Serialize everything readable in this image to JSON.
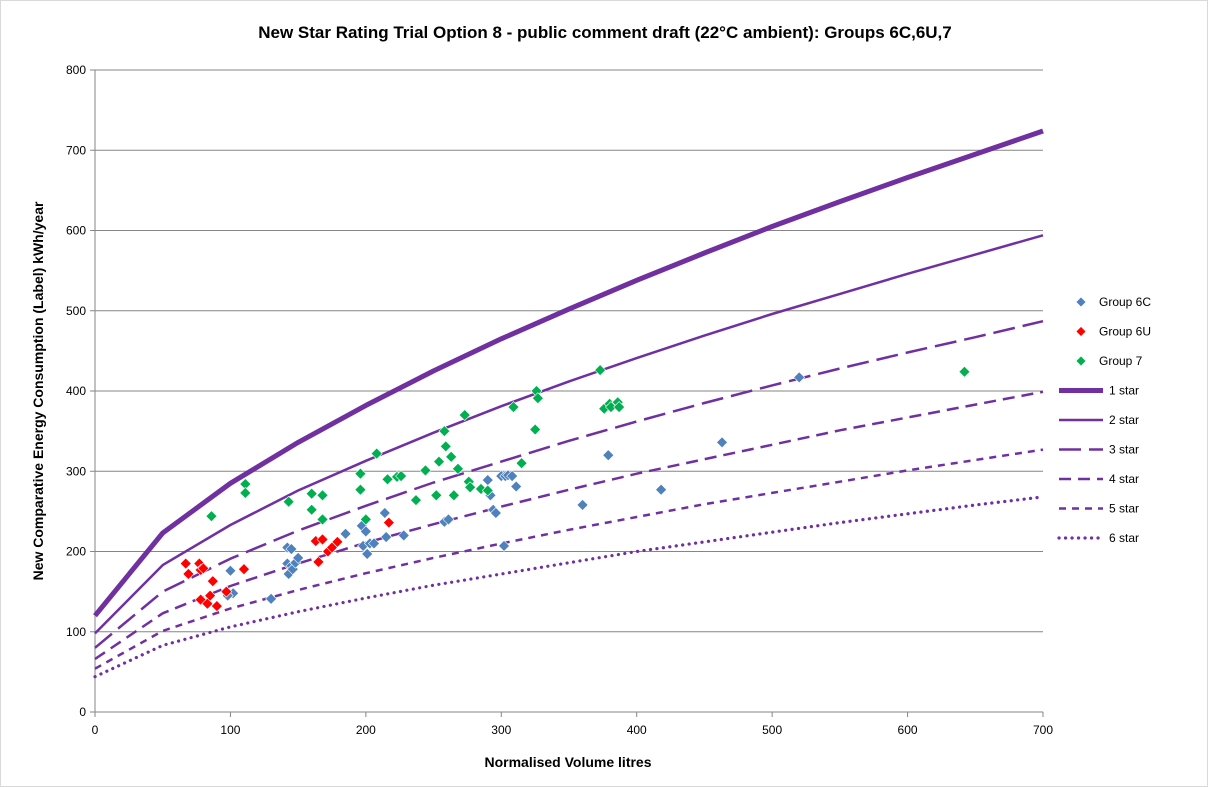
{
  "chart_data": {
    "type": "scatter",
    "title": "New Star Rating Trial Option 8 - public comment draft (22°C ambient): Groups 6C,6U,7",
    "xlabel": "Normalised Volume litres",
    "ylabel": "New Comparative Energy Consumption (Label) kWh/year",
    "xlim": [
      0,
      700
    ],
    "ylim": [
      0,
      800
    ],
    "x_ticks": [
      0,
      100,
      200,
      300,
      400,
      500,
      600,
      700
    ],
    "y_ticks": [
      0,
      100,
      200,
      300,
      400,
      500,
      600,
      700,
      800
    ],
    "grid": "horizontal",
    "legend_position": "right",
    "curve_x": [
      0,
      50,
      100,
      150,
      200,
      250,
      300,
      350,
      400,
      450,
      500,
      550,
      600,
      650,
      700
    ],
    "star_lines": [
      {
        "name": "1 star",
        "color": "#7030a0",
        "style": "thick",
        "values": [
          120,
          223,
          285,
          336,
          382,
          425,
          465,
          502,
          538,
          572,
          605,
          636,
          666,
          695,
          724
        ]
      },
      {
        "name": "2 star",
        "color": "#7030a0",
        "style": "solid",
        "values": [
          98,
          183,
          233,
          276,
          313,
          348,
          381,
          412,
          441,
          469,
          496,
          521,
          546,
          570,
          594
        ]
      },
      {
        "name": "3 star",
        "color": "#7030a0",
        "style": "longdash",
        "values": [
          80,
          150,
          191,
          226,
          257,
          286,
          312,
          338,
          362,
          385,
          407,
          428,
          448,
          467,
          487
        ]
      },
      {
        "name": "4 star",
        "color": "#7030a0",
        "style": "dash",
        "values": [
          66,
          123,
          157,
          185,
          211,
          234,
          256,
          277,
          297,
          315,
          333,
          351,
          367,
          383,
          399
        ]
      },
      {
        "name": "5 star",
        "color": "#7030a0",
        "style": "shortdash",
        "values": [
          54,
          101,
          129,
          152,
          173,
          192,
          210,
          227,
          243,
          259,
          273,
          287,
          301,
          314,
          327
        ]
      },
      {
        "name": "6 star",
        "color": "#7030a0",
        "style": "dotted",
        "values": [
          44,
          83,
          106,
          125,
          142,
          158,
          172,
          186,
          200,
          212,
          224,
          236,
          247,
          258,
          268
        ]
      }
    ],
    "series": [
      {
        "name": "Group 6C",
        "color": "#4f81bd",
        "points": [
          [
            100,
            176
          ],
          [
            102,
            148
          ],
          [
            98,
            145
          ],
          [
            130,
            141
          ],
          [
            142,
            205
          ],
          [
            145,
            203
          ],
          [
            142,
            185
          ],
          [
            145,
            182
          ],
          [
            143,
            172
          ],
          [
            146,
            178
          ],
          [
            148,
            186
          ],
          [
            150,
            192
          ],
          [
            185,
            222
          ],
          [
            197,
            232
          ],
          [
            200,
            225
          ],
          [
            198,
            207
          ],
          [
            201,
            197
          ],
          [
            203,
            210
          ],
          [
            206,
            210
          ],
          [
            214,
            248
          ],
          [
            215,
            218
          ],
          [
            228,
            220
          ],
          [
            258,
            237
          ],
          [
            261,
            240
          ],
          [
            290,
            289
          ],
          [
            292,
            270
          ],
          [
            294,
            252
          ],
          [
            296,
            248
          ],
          [
            300,
            294
          ],
          [
            303,
            294
          ],
          [
            302,
            207
          ],
          [
            305,
            295
          ],
          [
            308,
            294
          ],
          [
            311,
            281
          ],
          [
            360,
            258
          ],
          [
            379,
            320
          ],
          [
            418,
            277
          ],
          [
            463,
            336
          ],
          [
            520,
            417
          ]
        ]
      },
      {
        "name": "Group 6U",
        "color": "#ff0000",
        "points": [
          [
            67,
            185
          ],
          [
            69,
            172
          ],
          [
            77,
            185
          ],
          [
            78,
            177
          ],
          [
            80,
            179
          ],
          [
            78,
            140
          ],
          [
            83,
            135
          ],
          [
            85,
            145
          ],
          [
            87,
            163
          ],
          [
            90,
            132
          ],
          [
            97,
            150
          ],
          [
            110,
            178
          ],
          [
            163,
            213
          ],
          [
            165,
            187
          ],
          [
            168,
            215
          ],
          [
            172,
            200
          ],
          [
            175,
            205
          ],
          [
            179,
            212
          ],
          [
            217,
            236
          ]
        ]
      },
      {
        "name": "Group 7",
        "color": "#00b050",
        "points": [
          [
            86,
            244
          ],
          [
            111,
            284
          ],
          [
            111,
            273
          ],
          [
            143,
            262
          ],
          [
            160,
            272
          ],
          [
            160,
            252
          ],
          [
            168,
            270
          ],
          [
            168,
            240
          ],
          [
            196,
            297
          ],
          [
            196,
            277
          ],
          [
            200,
            240
          ],
          [
            208,
            322
          ],
          [
            216,
            290
          ],
          [
            223,
            293
          ],
          [
            226,
            294
          ],
          [
            237,
            264
          ],
          [
            244,
            301
          ],
          [
            252,
            270
          ],
          [
            254,
            312
          ],
          [
            258,
            350
          ],
          [
            259,
            331
          ],
          [
            263,
            318
          ],
          [
            265,
            270
          ],
          [
            268,
            303
          ],
          [
            273,
            370
          ],
          [
            276,
            287
          ],
          [
            277,
            280
          ],
          [
            285,
            278
          ],
          [
            290,
            276
          ],
          [
            315,
            310
          ],
          [
            309,
            380
          ],
          [
            325,
            352
          ],
          [
            326,
            400
          ],
          [
            327,
            391
          ],
          [
            373,
            426
          ],
          [
            376,
            378
          ],
          [
            380,
            384
          ],
          [
            381,
            380
          ],
          [
            386,
            386
          ],
          [
            387,
            380
          ],
          [
            642,
            424
          ]
        ]
      }
    ]
  }
}
